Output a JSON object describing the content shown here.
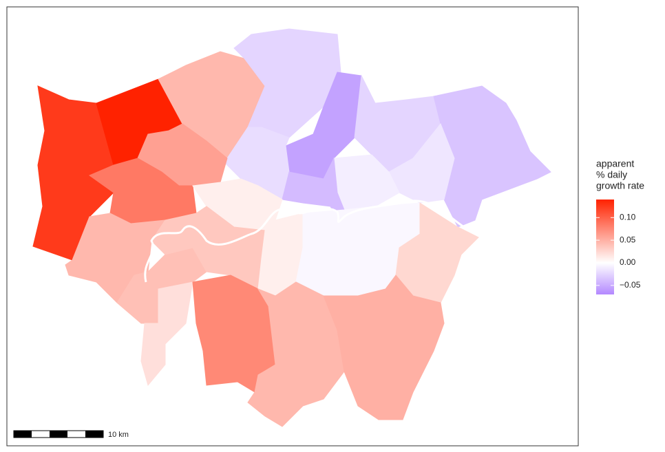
{
  "chart_data": {
    "type": "choropleth",
    "values": [
      0.125,
      0.14,
      0.045,
      -0.025,
      -0.055,
      -0.02,
      -0.025,
      -0.035,
      -0.015,
      -0.01,
      -0.04,
      0.06,
      0.085,
      0.01,
      0.045,
      0.04,
      0.02,
      0.035,
      0.01,
      0.075,
      -0.005,
      0.025,
      0.045,
      0.05
    ],
    "legend_title": [
      "apparent",
      "% daily",
      "growth rate"
    ],
    "legend_lim": [
      -0.07,
      0.14
    ],
    "legend_ticks": [
      {
        "value": 0.1,
        "label": "0.10"
      },
      0.05,
      {
        "value": 0,
        "label": "0.00"
      },
      {
        "value": -0.05,
        "label": "−0.05"
      }
    ],
    "colors": {
      "low": "#b388ff",
      "mid": "#ffffff",
      "high": "#ff2200"
    },
    "scale_bar_label": "10 km"
  }
}
